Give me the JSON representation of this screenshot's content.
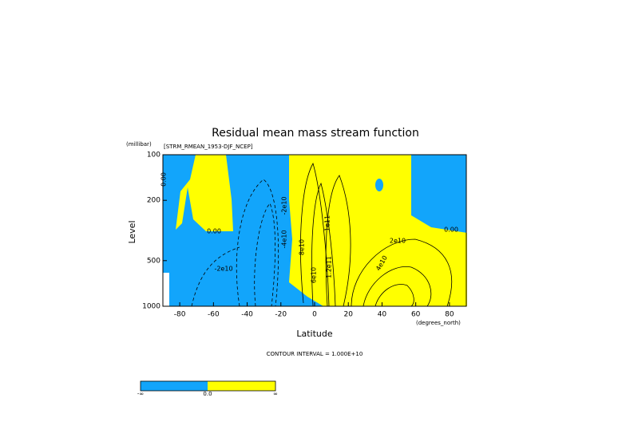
{
  "chart_data": {
    "type": "contour",
    "title": "Residual mean mass stream function",
    "subtitle": "[STRM_RMEAN_1953-DJF_NCEP]",
    "xlabel": "Latitude",
    "xunits": "(degrees_north)",
    "ylabel": "Level",
    "yunits": "(millibar)",
    "xlim": [
      -90,
      90
    ],
    "xticks": [
      -80,
      -60,
      -40,
      -20,
      0,
      20,
      40,
      60,
      80
    ],
    "ylim": [
      100,
      1000
    ],
    "yticks": [
      100,
      200,
      500,
      1000
    ],
    "ylog": true,
    "yinverted": true,
    "colors": {
      "negative": "#12a5fb",
      "positive": "#ffff00"
    },
    "footnote": "CONTOUR INTERVAL = 1.000E+10",
    "contour_labels": [
      "0.00",
      "0.00",
      "-2e10",
      "0.00",
      "2e10",
      "4e10",
      "6e10",
      "8e10",
      "1e11",
      "1.2e11",
      "-4e10",
      "-2e10"
    ],
    "colorbar_labels": [
      "-∞",
      "0.0",
      "∞"
    ]
  }
}
